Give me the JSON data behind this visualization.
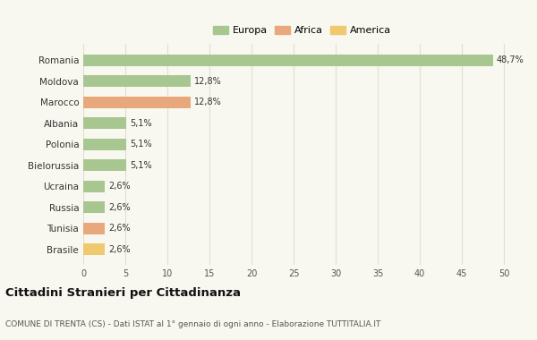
{
  "countries": [
    "Romania",
    "Moldova",
    "Marocco",
    "Albania",
    "Polonia",
    "Bielorussia",
    "Ucraina",
    "Russia",
    "Tunisia",
    "Brasile"
  ],
  "values": [
    48.7,
    12.8,
    12.8,
    5.1,
    5.1,
    5.1,
    2.6,
    2.6,
    2.6,
    2.6
  ],
  "labels": [
    "48,7%",
    "12,8%",
    "12,8%",
    "5,1%",
    "5,1%",
    "5,1%",
    "2,6%",
    "2,6%",
    "2,6%",
    "2,6%"
  ],
  "continents": [
    "Europa",
    "Europa",
    "Africa",
    "Europa",
    "Europa",
    "Europa",
    "Europa",
    "Europa",
    "Africa",
    "America"
  ],
  "colors": {
    "Europa": "#a8c68f",
    "Africa": "#e8a87c",
    "America": "#f0c96e"
  },
  "legend_labels": [
    "Europa",
    "Africa",
    "America"
  ],
  "xlim": [
    0,
    52
  ],
  "xticks": [
    0,
    5,
    10,
    15,
    20,
    25,
    30,
    35,
    40,
    45,
    50
  ],
  "title": "Cittadini Stranieri per Cittadinanza",
  "subtitle": "COMUNE DI TRENTA (CS) - Dati ISTAT al 1° gennaio di ogni anno - Elaborazione TUTTITALIA.IT",
  "bg_color": "#f8f8f0",
  "grid_color": "#e0e0d0"
}
